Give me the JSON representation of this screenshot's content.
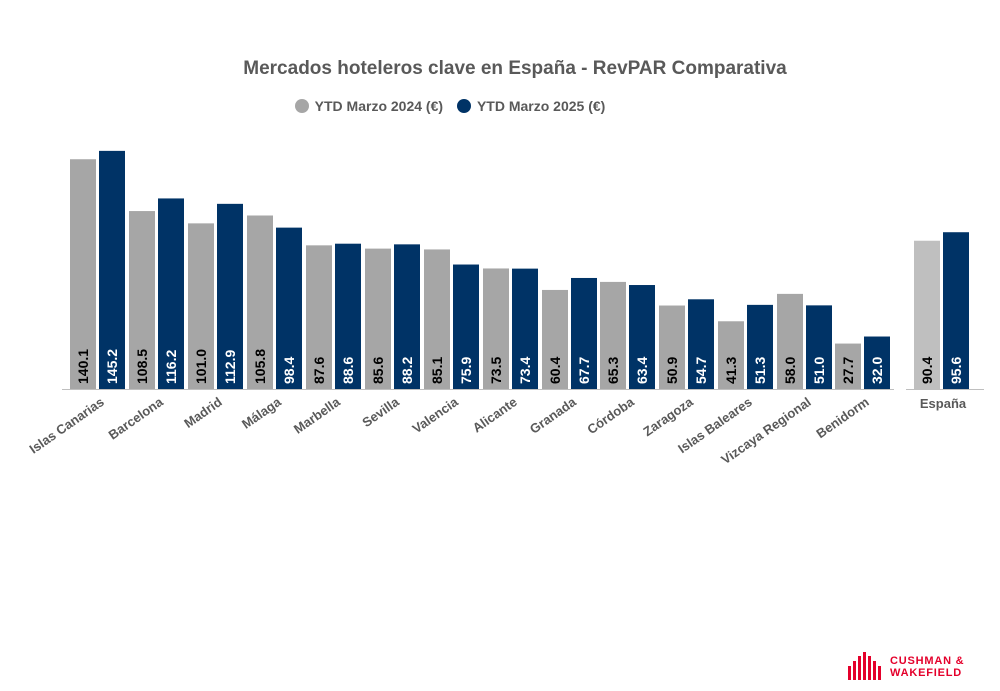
{
  "colors": {
    "series_2024": "#a6a6a6",
    "series_2025": "#003366",
    "text": "#595959",
    "brand": "#e4002b"
  },
  "logo": {
    "line1": "CUSHMAN &",
    "line2": "WAKEFIELD",
    "icon": "cushman-wakefield-logo-icon"
  },
  "chart_data": {
    "type": "bar",
    "title": "Mercados hoteleros clave en España - RevPAR Comparativa",
    "xlabel": "",
    "ylabel": "",
    "ylim": [
      0,
      150
    ],
    "grid": false,
    "legend": "top",
    "value_labels": "inside-bottom-rotated",
    "categories": [
      "Islas Canarias",
      "Barcelona",
      "Madrid",
      "Málaga",
      "Marbella",
      "Sevilla",
      "Valencia",
      "Alicante",
      "Granada",
      "Córdoba",
      "Zaragoza",
      "Islas Baleares",
      "Vizcaya Regional",
      "Benidorm",
      "España"
    ],
    "series": [
      {
        "name": "YTD Marzo 2024 (€)",
        "values": [
          140.1,
          108.5,
          101.0,
          105.8,
          87.6,
          85.6,
          85.1,
          73.5,
          60.4,
          65.3,
          50.9,
          41.3,
          58.0,
          27.7,
          90.4
        ]
      },
      {
        "name": "YTD Marzo 2025 (€)",
        "values": [
          145.2,
          116.2,
          112.9,
          98.4,
          88.6,
          88.2,
          75.9,
          73.4,
          67.7,
          63.4,
          54.7,
          51.3,
          51.0,
          32.0,
          95.6
        ]
      }
    ]
  }
}
